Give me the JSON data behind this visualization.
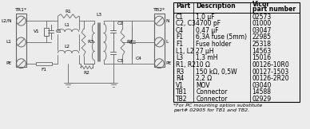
{
  "table_rows": [
    [
      "C1",
      "1,0 μF",
      "02573"
    ],
    [
      "C2, C3",
      "4700 pF",
      "01000"
    ],
    [
      "C4",
      "0,47 μF",
      "03047"
    ],
    [
      "F1",
      "6,3A fuse (5mm)",
      "22985"
    ],
    [
      "F1",
      "Fuse holder",
      "25318"
    ],
    [
      "L1, L2",
      "27 μH",
      "14563"
    ],
    [
      "L3",
      "1,3 mH",
      "15016"
    ],
    [
      "R1, R2",
      "10 Ω",
      "00126-10R0"
    ],
    [
      "R3",
      "150 kΩ, 0,5W",
      "00127-1503"
    ],
    [
      "R4",
      "2,2 Ω",
      "00126-2R20"
    ],
    [
      "V1",
      "MOV",
      "03040"
    ],
    [
      "TB1",
      "Connector",
      "14588"
    ],
    [
      "TB2",
      "Connector",
      "02929"
    ]
  ],
  "footnote": "*For PC mounting option substitute\npart# 02905 for TB1 and TB2.",
  "bg_color": "#ececec",
  "text_color": "#000000",
  "line_color": "#666666",
  "table_font_size": 5.5,
  "header_font_size": 5.5,
  "footnote_font_size": 4.5,
  "label_font_size": 5.0
}
